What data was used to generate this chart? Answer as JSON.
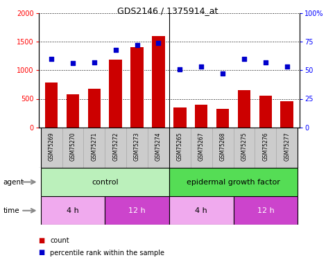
{
  "title": "GDS2146 / 1375914_at",
  "samples": [
    "GSM75269",
    "GSM75270",
    "GSM75271",
    "GSM75272",
    "GSM75273",
    "GSM75274",
    "GSM75265",
    "GSM75267",
    "GSM75268",
    "GSM75275",
    "GSM75276",
    "GSM75277"
  ],
  "counts": [
    790,
    580,
    680,
    1190,
    1400,
    1600,
    350,
    400,
    325,
    650,
    560,
    460
  ],
  "percentiles": [
    60,
    56,
    57,
    68,
    72,
    74,
    51,
    53,
    47,
    60,
    57,
    53
  ],
  "bar_color": "#cc0000",
  "dot_color": "#0000cc",
  "ylim_left": [
    0,
    2000
  ],
  "ylim_right": [
    0,
    100
  ],
  "yticks_left": [
    0,
    500,
    1000,
    1500,
    2000
  ],
  "yticks_right": [
    0,
    25,
    50,
    75,
    100
  ],
  "ytick_labels_right": [
    "0",
    "25",
    "50",
    "75",
    "100%"
  ],
  "agent_control_color": "#bbf0bb",
  "agent_egf_color": "#55dd55",
  "time_4h_color": "#f0aaee",
  "time_12h_color": "#cc44cc",
  "sample_bg_color": "#cccccc",
  "legend_count_color": "#cc0000",
  "legend_pct_color": "#0000cc"
}
